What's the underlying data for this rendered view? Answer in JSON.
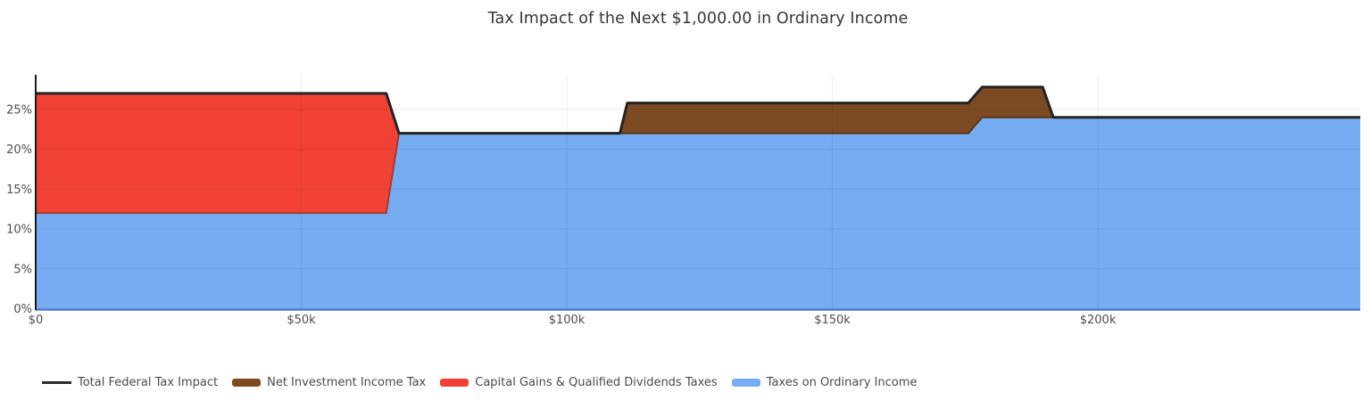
{
  "window": {
    "background": "#ffffff"
  },
  "chart_data": {
    "type": "area",
    "stacked": true,
    "title": "Tax Impact of the Next $1,000.00 in Ordinary Income",
    "x_axis": {
      "min": 0,
      "max": 249400,
      "ticks": [
        {
          "v": 0,
          "label": "$0"
        },
        {
          "v": 50000,
          "label": "$50k"
        },
        {
          "v": 100000,
          "label": "$100k"
        },
        {
          "v": 150000,
          "label": "$150k"
        },
        {
          "v": 200000,
          "label": "$200k"
        }
      ]
    },
    "y_axis": {
      "min": 0,
      "max": 29.33,
      "ticks": [
        {
          "v": 0,
          "label": "0%"
        },
        {
          "v": 5,
          "label": "5%"
        },
        {
          "v": 10,
          "label": "10%"
        },
        {
          "v": 15,
          "label": "15%"
        },
        {
          "v": 20,
          "label": "20%"
        },
        {
          "v": 25,
          "label": "25%"
        }
      ]
    },
    "series": [
      {
        "name": "Taxes on Ordinary Income",
        "fill": "#76ACF2",
        "border": "#4A7CCB",
        "points": [
          [
            0,
            12
          ],
          [
            66000,
            12
          ],
          [
            68400,
            22
          ],
          [
            175600,
            22
          ],
          [
            178200,
            24
          ],
          [
            249400,
            24
          ]
        ]
      },
      {
        "name": "Capital Gains & Qualified Dividends Taxes",
        "fill": "#F04134",
        "border": "#A33B33",
        "points": [
          [
            0,
            15
          ],
          [
            66000,
            15
          ],
          [
            68400,
            0
          ],
          [
            249400,
            0
          ]
        ]
      },
      {
        "name": "Net Investment Income Tax",
        "fill": "#7C4A22",
        "border": "#5A3517",
        "points": [
          [
            0,
            0
          ],
          [
            110000,
            0
          ],
          [
            111400,
            3.8
          ],
          [
            189600,
            3.8
          ],
          [
            191600,
            0
          ],
          [
            249400,
            0
          ]
        ]
      }
    ],
    "total_line": {
      "name": "Total Federal Tax Impact",
      "color": "#232323",
      "width": 3
    },
    "grid": {
      "color": "rgba(0,0,0,0.07)",
      "vertical": true,
      "horizontal": true
    },
    "axis": {
      "spine_color": "#1a1a1a",
      "tick_color": "#4d4d4d"
    }
  },
  "legend": {
    "items": [
      {
        "label": "Total Federal Tax Impact",
        "swatch": "line",
        "color": "#2B2B2B"
      },
      {
        "label": "Net Investment Income Tax",
        "swatch": "box",
        "color": "#7C4A22"
      },
      {
        "label": "Capital Gains & Qualified Dividends Taxes",
        "swatch": "box",
        "color": "#F04134"
      },
      {
        "label": "Taxes on Ordinary Income",
        "swatch": "box",
        "color": "#76ACF2"
      }
    ]
  }
}
